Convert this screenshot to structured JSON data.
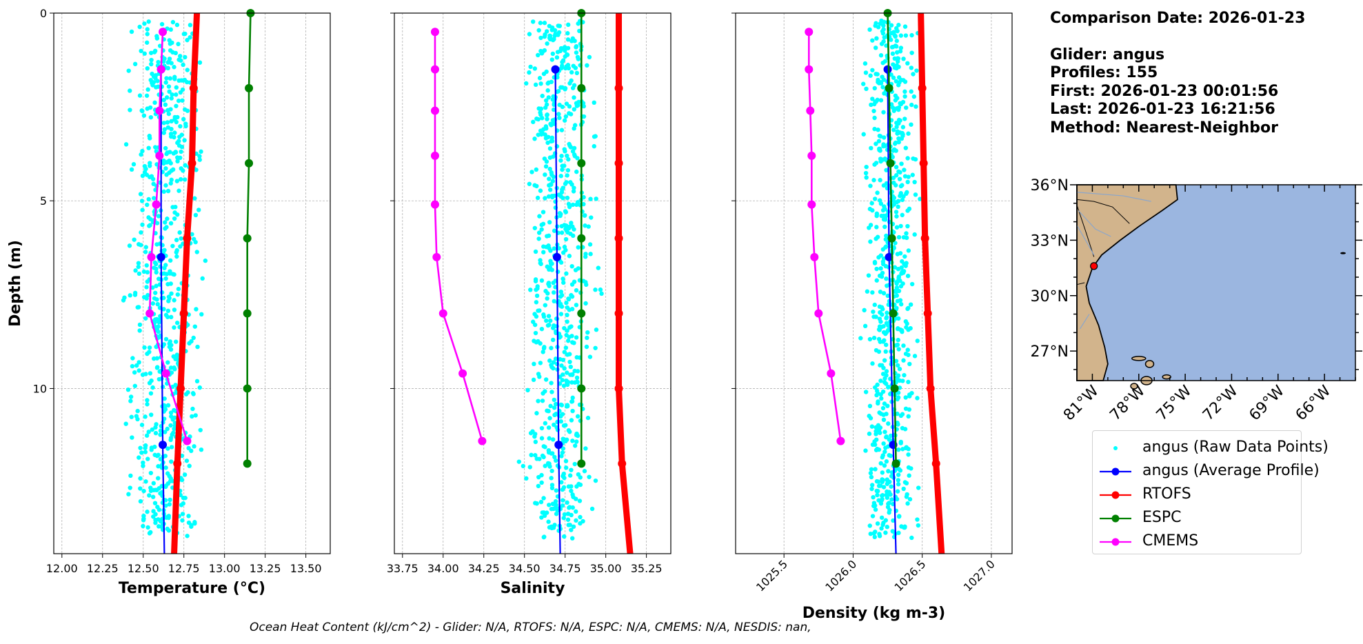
{
  "info": {
    "comparison_date": "Comparison Date: 2026-01-23",
    "glider": "Glider: angus",
    "profiles": "Profiles: 155",
    "first": "First: 2026-01-23 00:01:56",
    "last": "Last: 2026-01-23 16:21:56",
    "method": "Method: Nearest-Neighbor"
  },
  "footer": "Ocean Heat Content (kJ/cm^2) - Glider: N/A,  RTOFS: N/A,  ESPC: N/A,  CMEMS: N/A,  NESDIS: nan,",
  "colors": {
    "raw": "#00ffff",
    "glider_avg": "#0000ff",
    "rtofs": "#ff0000",
    "espc": "#008000",
    "cmems": "#ff00ff",
    "land": "#d2b48c",
    "ocean": "#9bb6e0"
  },
  "legend": [
    {
      "key": "raw",
      "label": "angus (Raw Data Points)",
      "style": "dot"
    },
    {
      "key": "glider_avg",
      "label": "angus (Average Profile)",
      "style": "line-marker"
    },
    {
      "key": "rtofs",
      "label": "RTOFS",
      "style": "line-marker"
    },
    {
      "key": "espc",
      "label": "ESPC",
      "style": "line-marker"
    },
    {
      "key": "cmems",
      "label": "CMEMS",
      "style": "line-marker"
    }
  ],
  "chart_data": [
    {
      "type": "line",
      "id": "temperature",
      "xlabel": "Temperature (°C)",
      "ylabel": "Depth (m)",
      "xlim": [
        11.95,
        13.65
      ],
      "ylim": [
        14.4,
        0
      ],
      "xticks": [
        "12.00",
        "12.25",
        "12.50",
        "12.75",
        "13.00",
        "13.25",
        "13.50"
      ],
      "xtick_values": [
        12.0,
        12.25,
        12.5,
        12.75,
        13.0,
        13.25,
        13.5
      ],
      "yticks": [
        "0",
        "5",
        "10"
      ],
      "ytick_values": [
        0,
        5,
        10
      ],
      "grid": true,
      "raw_range": {
        "x": [
          12.43,
          12.88
        ],
        "depth": [
          0.2,
          14.0
        ],
        "center": 12.63
      },
      "series": [
        {
          "key": "glider_avg",
          "x": [
            12.61,
            12.61,
            12.62,
            12.63
          ],
          "depth": [
            1.5,
            6.5,
            11.5,
            14.4
          ]
        },
        {
          "key": "rtofs",
          "x": [
            12.83,
            12.81,
            12.8,
            12.77,
            12.75,
            12.73,
            12.71,
            12.69
          ],
          "depth": [
            0,
            2,
            4,
            6,
            8,
            10,
            12,
            14.4
          ],
          "marker_depths": [
            2,
            4,
            6,
            8,
            10,
            12
          ]
        },
        {
          "key": "espc",
          "x": [
            13.16,
            13.15,
            13.15,
            13.14,
            13.14,
            13.14,
            13.14
          ],
          "depth": [
            0,
            2,
            4,
            6,
            8,
            10,
            12
          ]
        },
        {
          "key": "cmems",
          "x": [
            12.62,
            12.61,
            12.6,
            12.6,
            12.58,
            12.55,
            12.54,
            12.64,
            12.77
          ],
          "depth": [
            0.5,
            1.5,
            2.6,
            3.8,
            5.1,
            6.5,
            8.0,
            9.6,
            11.4
          ]
        }
      ]
    },
    {
      "type": "line",
      "id": "salinity",
      "xlabel": "Salinity",
      "xlim": [
        33.7,
        35.4
      ],
      "ylim": [
        14.4,
        0
      ],
      "xticks": [
        "33.75",
        "34.00",
        "34.25",
        "34.50",
        "34.75",
        "35.00",
        "35.25"
      ],
      "xtick_values": [
        33.75,
        34.0,
        34.25,
        34.5,
        34.75,
        35.0,
        35.25
      ],
      "grid": true,
      "raw_range": {
        "x": [
          34.5,
          34.95
        ],
        "depth": [
          0.2,
          14.0
        ],
        "center": 34.72
      },
      "series": [
        {
          "key": "glider_avg",
          "x": [
            34.69,
            34.7,
            34.71,
            34.72
          ],
          "depth": [
            1.5,
            6.5,
            11.5,
            14.4
          ]
        },
        {
          "key": "rtofs",
          "x": [
            35.08,
            35.08,
            35.08,
            35.08,
            35.08,
            35.08,
            35.1,
            35.15
          ],
          "depth": [
            0,
            2,
            4,
            6,
            8,
            10,
            12,
            14.4
          ],
          "marker_depths": [
            2,
            4,
            6,
            8,
            10,
            12
          ]
        },
        {
          "key": "espc",
          "x": [
            34.85,
            34.85,
            34.85,
            34.85,
            34.85,
            34.85,
            34.85
          ],
          "depth": [
            0,
            2,
            4,
            6,
            8,
            10,
            12
          ]
        },
        {
          "key": "cmems",
          "x": [
            33.95,
            33.95,
            33.95,
            33.95,
            33.95,
            33.96,
            34.0,
            34.12,
            34.24
          ],
          "depth": [
            0.5,
            1.5,
            2.6,
            3.8,
            5.1,
            6.5,
            8.0,
            9.6,
            11.4
          ]
        }
      ]
    },
    {
      "type": "line",
      "id": "density",
      "xlabel": "Density (kg m-3)",
      "xlim": [
        1025.15,
        1027.15
      ],
      "ylim": [
        14.4,
        0
      ],
      "xticks": [
        "1025.5",
        "1026.0",
        "1026.5",
        "1027.0"
      ],
      "xtick_values": [
        1025.5,
        1026.0,
        1026.5,
        1027.0
      ],
      "grid": true,
      "raw_range": {
        "x": [
          1026.1,
          1026.48
        ],
        "depth": [
          0.2,
          14.0
        ],
        "center": 1026.27
      },
      "series": [
        {
          "key": "glider_avg",
          "x": [
            1026.25,
            1026.26,
            1026.29,
            1026.31
          ],
          "depth": [
            1.5,
            6.5,
            11.5,
            14.4
          ]
        },
        {
          "key": "rtofs",
          "x": [
            1026.49,
            1026.5,
            1026.51,
            1026.52,
            1026.54,
            1026.56,
            1026.6,
            1026.64
          ],
          "depth": [
            0,
            2,
            4,
            6,
            8,
            10,
            12,
            14.4
          ],
          "marker_depths": [
            2,
            4,
            6,
            8,
            10,
            12
          ]
        },
        {
          "key": "espc",
          "x": [
            1026.25,
            1026.26,
            1026.27,
            1026.28,
            1026.29,
            1026.3,
            1026.31
          ],
          "depth": [
            0,
            2,
            4,
            6,
            8,
            10,
            12
          ]
        },
        {
          "key": "cmems",
          "x": [
            1025.68,
            1025.68,
            1025.69,
            1025.7,
            1025.7,
            1025.72,
            1025.75,
            1025.84,
            1025.91
          ],
          "depth": [
            0.5,
            1.5,
            2.6,
            3.8,
            5.1,
            6.5,
            8.0,
            9.6,
            11.4
          ]
        }
      ]
    }
  ],
  "map": {
    "lat_labels": [
      "36°N",
      "33°N",
      "30°N",
      "27°N"
    ],
    "lat_values": [
      36,
      33,
      30,
      27
    ],
    "lon_labels": [
      "81°W",
      "78°W",
      "75°W",
      "72°W",
      "69°W",
      "66°W"
    ],
    "lon_values": [
      -81,
      -78,
      -75,
      -72,
      -69,
      -66
    ],
    "extent": {
      "lon": [
        -82.0,
        -64.0
      ],
      "lat": [
        25.4,
        36.0
      ]
    },
    "glider_position": {
      "lon": -80.9,
      "lat": 31.6
    }
  }
}
